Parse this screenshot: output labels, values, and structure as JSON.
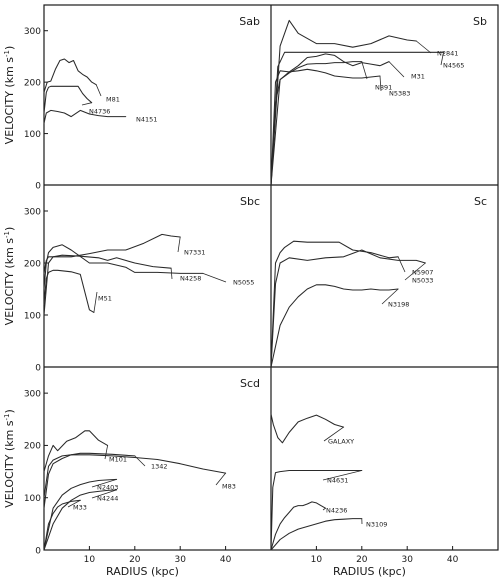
{
  "chart_data": [
    {
      "type": "line",
      "title": "Sab",
      "ylabel": "VELOCITY (km s",
      "ylabel_exponent": "-1",
      "ylabel_close": ")",
      "xlim": [
        0,
        50
      ],
      "ylim": [
        0,
        350
      ],
      "yticks": [
        0,
        100,
        200,
        300
      ],
      "series": [
        {
          "name": "M81",
          "x": [
            0,
            0.7,
            1.5,
            2.5,
            3.5,
            4.5,
            5.5,
            6.5,
            7.5,
            8.5,
            9.5,
            10.5,
            11.5
          ],
          "y": [
            180,
            200,
            202,
            225,
            242,
            245,
            238,
            242,
            222,
            215,
            210,
            200,
            195
          ]
        },
        {
          "name": "N4736",
          "x": [
            0,
            0.5,
            1,
            1.5,
            3,
            4.5,
            6,
            7.5,
            8.5,
            9.5,
            10.5
          ],
          "y": [
            140,
            180,
            190,
            192,
            192,
            192,
            192,
            192,
            178,
            168,
            160
          ]
        },
        {
          "name": "N4151",
          "x": [
            0,
            0.5,
            1.5,
            3,
            4.5,
            6,
            8,
            10,
            12,
            14,
            16,
            18
          ],
          "y": [
            120,
            140,
            145,
            143,
            140,
            133,
            145,
            138,
            135,
            133,
            133,
            133
          ]
        }
      ]
    },
    {
      "type": "line",
      "title": "Sb",
      "xlim": [
        0,
        50
      ],
      "ylim": [
        0,
        350
      ],
      "series": [
        {
          "name": "N2841",
          "x": [
            0,
            2,
            4,
            6,
            10,
            14,
            18,
            22,
            26,
            30,
            32
          ],
          "y": [
            0,
            270,
            320,
            295,
            275,
            275,
            268,
            275,
            290,
            282,
            280
          ]
        },
        {
          "name": "N4565",
          "x": [
            0,
            1.5,
            3,
            6,
            10,
            15,
            20,
            25,
            30,
            35,
            38
          ],
          "y": [
            0,
            230,
            258,
            258,
            258,
            258,
            258,
            258,
            258,
            258,
            258
          ]
        },
        {
          "name": "M31",
          "x": [
            0,
            1,
            2,
            4,
            6,
            8,
            10,
            12,
            14,
            16,
            18,
            20,
            22,
            24,
            26
          ],
          "y": [
            0,
            200,
            222,
            220,
            232,
            248,
            250,
            255,
            252,
            240,
            232,
            238,
            235,
            232,
            240
          ]
        },
        {
          "name": "N891",
          "x": [
            0,
            2,
            4,
            6,
            8,
            10,
            12,
            14,
            16,
            18,
            20
          ],
          "y": [
            0,
            205,
            218,
            228,
            235,
            236,
            236,
            238,
            238,
            240,
            240
          ]
        },
        {
          "name": "N5383",
          "x": [
            0,
            1,
            2,
            4,
            6,
            8,
            10,
            12,
            14,
            16,
            18,
            20,
            22,
            24
          ],
          "y": [
            0,
            160,
            205,
            220,
            222,
            225,
            222,
            218,
            212,
            210,
            208,
            208,
            210,
            212
          ]
        }
      ]
    },
    {
      "type": "line",
      "title": "Sbc",
      "ylabel": "VELOCITY (km s",
      "ylabel_exponent": "-1",
      "ylabel_close": ")",
      "xlim": [
        0,
        50
      ],
      "ylim": [
        0,
        350
      ],
      "yticks": [
        0,
        100,
        200,
        300
      ],
      "series": [
        {
          "name": "N7331",
          "x": [
            0,
            0.5,
            1,
            3,
            6,
            10,
            14,
            18,
            22,
            26,
            28,
            30
          ],
          "y": [
            180,
            205,
            212,
            212,
            212,
            218,
            225,
            225,
            238,
            255,
            252,
            250
          ]
        },
        {
          "name": "N4258",
          "x": [
            0,
            1,
            2,
            4,
            8,
            12,
            14,
            16,
            20,
            24,
            28
          ],
          "y": [
            100,
            200,
            212,
            215,
            213,
            210,
            205,
            210,
            200,
            193,
            190
          ]
        },
        {
          "name": "N5055",
          "x": [
            0,
            0.5,
            1,
            2,
            4,
            6,
            10,
            14,
            18,
            20,
            25,
            30,
            35
          ],
          "y": [
            150,
            200,
            220,
            230,
            235,
            225,
            200,
            200,
            192,
            182,
            182,
            180,
            180
          ]
        },
        {
          "name": "M51",
          "x": [
            0,
            0.5,
            1,
            2,
            3,
            4,
            6,
            8,
            10,
            11
          ],
          "y": [
            120,
            170,
            182,
            186,
            186,
            185,
            183,
            178,
            110,
            105
          ]
        }
      ]
    },
    {
      "type": "line",
      "title": "Sc",
      "xlim": [
        0,
        50
      ],
      "ylim": [
        0,
        350
      ],
      "series": [
        {
          "name": "N5907",
          "x": [
            0,
            1,
            2,
            3,
            5,
            8,
            12,
            15,
            18,
            22,
            26,
            28
          ],
          "y": [
            0,
            200,
            220,
            230,
            242,
            240,
            240,
            240,
            225,
            220,
            210,
            212
          ]
        },
        {
          "name": "N5033",
          "x": [
            0,
            1,
            2,
            4,
            8,
            12,
            16,
            20,
            24,
            28,
            32,
            34
          ],
          "y": [
            0,
            160,
            200,
            210,
            205,
            210,
            212,
            225,
            210,
            205,
            205,
            200
          ]
        },
        {
          "name": "N3198",
          "x": [
            0,
            2,
            4,
            6,
            8,
            10,
            12,
            14,
            16,
            18,
            20,
            22,
            24,
            26,
            28
          ],
          "y": [
            0,
            80,
            115,
            135,
            150,
            158,
            158,
            155,
            150,
            148,
            148,
            150,
            148,
            148,
            150
          ]
        }
      ]
    },
    {
      "type": "line",
      "title": "Scd",
      "ylabel": "VELOCITY (km s",
      "ylabel_exponent": "-1",
      "ylabel_close": ")",
      "xlabel": "RADIUS (kpc)",
      "xlim": [
        0,
        50
      ],
      "ylim": [
        0,
        350
      ],
      "yticks": [
        0,
        100,
        200,
        300
      ],
      "xticks": [
        10,
        20,
        30,
        40
      ],
      "series": [
        {
          "name": "M101",
          "x": [
            0,
            1,
            2,
            3,
            5,
            7,
            9,
            10,
            12,
            14
          ],
          "y": [
            150,
            180,
            200,
            190,
            208,
            215,
            228,
            228,
            210,
            200
          ]
        },
        {
          "name": "1342",
          "x": [
            0,
            1,
            2,
            4,
            6,
            8,
            10,
            15,
            20
          ],
          "y": [
            80,
            145,
            165,
            175,
            182,
            185,
            185,
            183,
            180
          ]
        },
        {
          "name": "M83",
          "x": [
            0,
            1,
            2,
            4,
            6,
            10,
            15,
            20,
            25,
            30,
            35,
            40
          ],
          "y": [
            100,
            160,
            172,
            180,
            182,
            182,
            180,
            177,
            173,
            165,
            155,
            147
          ]
        },
        {
          "name": "N2403",
          "x": [
            0,
            2,
            4,
            6,
            8,
            10,
            12,
            14,
            16
          ],
          "y": [
            0,
            80,
            105,
            118,
            125,
            130,
            133,
            134,
            135
          ]
        },
        {
          "name": "N4244",
          "x": [
            0,
            2,
            4,
            6,
            8,
            10,
            12,
            14,
            16
          ],
          "y": [
            0,
            50,
            80,
            95,
            105,
            110,
            112,
            114,
            115
          ]
        },
        {
          "name": "M33",
          "x": [
            0,
            1,
            2,
            3,
            4,
            6,
            8
          ],
          "y": [
            0,
            50,
            70,
            82,
            88,
            93,
            95
          ]
        }
      ]
    },
    {
      "type": "line",
      "title": "",
      "xlabel": "RADIUS (kpc)",
      "xlim": [
        0,
        50
      ],
      "ylim": [
        0,
        350
      ],
      "xticks": [
        10,
        20,
        30,
        40
      ],
      "series": [
        {
          "name": "GALAXY",
          "x": [
            0,
            0.5,
            1.5,
            2.5,
            4,
            6,
            8,
            10,
            12,
            14,
            16
          ],
          "y": [
            260,
            240,
            215,
            205,
            225,
            245,
            252,
            258,
            250,
            240,
            235
          ]
        },
        {
          "name": "N4631",
          "x": [
            0,
            0.4,
            1,
            2,
            4,
            8,
            12,
            16,
            20
          ],
          "y": [
            0,
            120,
            148,
            150,
            152,
            152,
            152,
            152,
            152
          ]
        },
        {
          "name": "N4236",
          "x": [
            0,
            1,
            2,
            3,
            4,
            5,
            6,
            7,
            8,
            9,
            10,
            11,
            12
          ],
          "y": [
            0,
            30,
            50,
            62,
            72,
            82,
            85,
            85,
            88,
            92,
            90,
            85,
            80
          ]
        },
        {
          "name": "N3109",
          "x": [
            0,
            2,
            4,
            6,
            8,
            10,
            12,
            14,
            16,
            18,
            20
          ],
          "y": [
            0,
            20,
            32,
            40,
            45,
            50,
            55,
            58,
            59,
            60,
            60
          ]
        }
      ]
    }
  ]
}
